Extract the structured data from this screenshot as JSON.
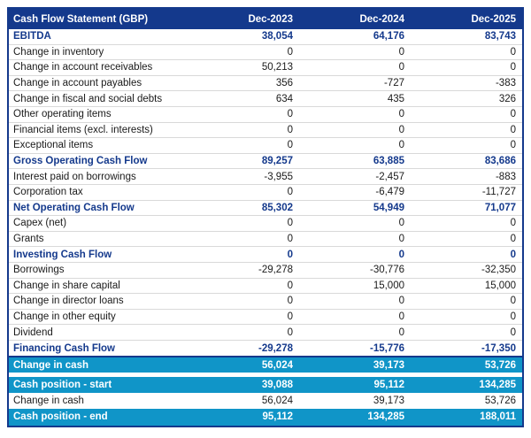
{
  "colors": {
    "header_background": "#14398C",
    "section_text": "#14398C",
    "highlight_background": "#1095C8",
    "body_text": "#1A1A1A",
    "divider": "#D9D9D9"
  },
  "chart_data": {
    "type": "table",
    "title": "Cash Flow Statement (GBP)",
    "columns": [
      "Dec-2023",
      "Dec-2024",
      "Dec-2025"
    ],
    "rows": [
      {
        "label": "EBITDA",
        "values": [
          "38,054",
          "64,176",
          "83,743"
        ],
        "style": "section"
      },
      {
        "label": "Change in inventory",
        "values": [
          "0",
          "0",
          "0"
        ],
        "style": "normal"
      },
      {
        "label": "Change in account receivables",
        "values": [
          "50,213",
          "0",
          "0"
        ],
        "style": "normal"
      },
      {
        "label": "Change in account payables",
        "values": [
          "356",
          "-727",
          "-383"
        ],
        "style": "normal"
      },
      {
        "label": "Change in fiscal and social debts",
        "values": [
          "634",
          "435",
          "326"
        ],
        "style": "normal"
      },
      {
        "label": "Other operating items",
        "values": [
          "0",
          "0",
          "0"
        ],
        "style": "normal"
      },
      {
        "label": "Financial items (excl. interests)",
        "values": [
          "0",
          "0",
          "0"
        ],
        "style": "normal"
      },
      {
        "label": "Exceptional items",
        "values": [
          "0",
          "0",
          "0"
        ],
        "style": "normal"
      },
      {
        "label": "Gross Operating Cash Flow",
        "values": [
          "89,257",
          "63,885",
          "83,686"
        ],
        "style": "section"
      },
      {
        "label": "Interest paid on borrowings",
        "values": [
          "-3,955",
          "-2,457",
          "-883"
        ],
        "style": "normal"
      },
      {
        "label": "Corporation tax",
        "values": [
          "0",
          "-6,479",
          "-11,727"
        ],
        "style": "normal"
      },
      {
        "label": "Net Operating Cash Flow",
        "values": [
          "85,302",
          "54,949",
          "71,077"
        ],
        "style": "section"
      },
      {
        "label": "Capex (net)",
        "values": [
          "0",
          "0",
          "0"
        ],
        "style": "normal"
      },
      {
        "label": "Grants",
        "values": [
          "0",
          "0",
          "0"
        ],
        "style": "normal"
      },
      {
        "label": "Investing Cash Flow",
        "values": [
          "0",
          "0",
          "0"
        ],
        "style": "section"
      },
      {
        "label": "Borrowings",
        "values": [
          "-29,278",
          "-30,776",
          "-32,350"
        ],
        "style": "normal"
      },
      {
        "label": "Change in share capital",
        "values": [
          "0",
          "15,000",
          "15,000"
        ],
        "style": "normal"
      },
      {
        "label": "Change in director loans",
        "values": [
          "0",
          "0",
          "0"
        ],
        "style": "normal"
      },
      {
        "label": "Change in other equity",
        "values": [
          "0",
          "0",
          "0"
        ],
        "style": "normal"
      },
      {
        "label": "Dividend",
        "values": [
          "0",
          "0",
          "0"
        ],
        "style": "normal"
      },
      {
        "label": "Financing Cash Flow",
        "values": [
          "-29,278",
          "-15,776",
          "-17,350"
        ],
        "style": "section"
      },
      {
        "label": "Change in cash",
        "values": [
          "56,024",
          "39,173",
          "53,726"
        ],
        "style": "highlight_top"
      },
      {
        "label": "",
        "values": [],
        "style": "gap"
      },
      {
        "label": "Cash position - start",
        "values": [
          "39,088",
          "95,112",
          "134,285"
        ],
        "style": "highlight"
      },
      {
        "label": "Change in cash",
        "values": [
          "56,024",
          "39,173",
          "53,726"
        ],
        "style": "normal"
      },
      {
        "label": "Cash position - end",
        "values": [
          "95,112",
          "134,285",
          "188,011"
        ],
        "style": "highlight"
      }
    ]
  }
}
